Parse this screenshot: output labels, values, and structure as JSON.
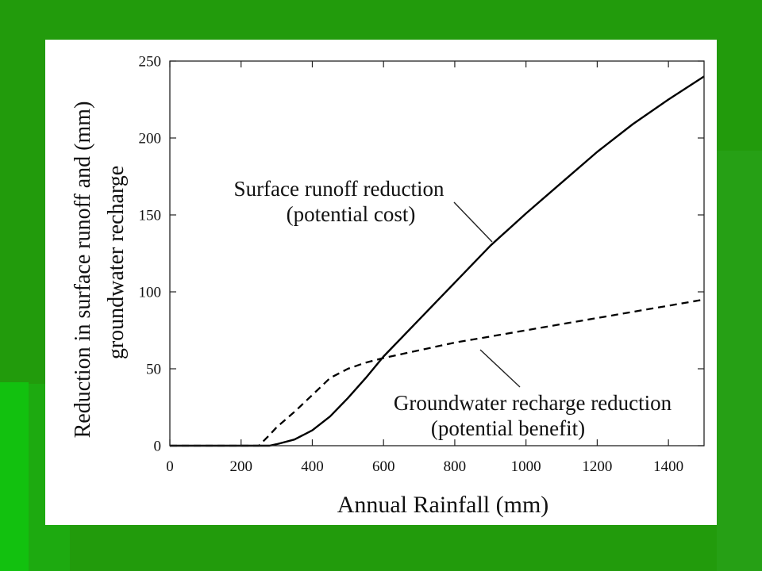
{
  "chart_data": {
    "type": "line",
    "xlabel": "Annual Rainfall (mm)",
    "ylabel": [
      "Reduction in surface runoff and (mm)",
      "groundwater recharge"
    ],
    "xlim": [
      0,
      1500
    ],
    "ylim": [
      0,
      250
    ],
    "x_ticks": [
      0,
      200,
      400,
      600,
      800,
      1000,
      1200,
      1400
    ],
    "y_ticks": [
      0,
      50,
      100,
      150,
      200,
      250
    ],
    "grid": false,
    "x": [
      0,
      100,
      200,
      250,
      280,
      300,
      350,
      400,
      450,
      500,
      550,
      600,
      700,
      800,
      900,
      1000,
      1100,
      1200,
      1300,
      1400,
      1500
    ],
    "series": [
      {
        "name": "Surface runoff reduction",
        "note": "(potential cost)",
        "line_style": "solid",
        "color": "#000000",
        "values": [
          0,
          0,
          0,
          0,
          0,
          1,
          4,
          10,
          19,
          31,
          44,
          58,
          82,
          106,
          130,
          151,
          171,
          191,
          209,
          225,
          240
        ]
      },
      {
        "name": "Groundwater recharge reduction",
        "note": "(potential benefit)",
        "line_style": "dashed",
        "color": "#000000",
        "values": [
          0,
          0,
          0,
          0,
          7,
          12,
          22,
          33,
          44,
          50,
          54,
          57,
          62,
          67,
          71,
          75,
          79,
          83,
          87,
          91,
          95
        ]
      }
    ]
  }
}
